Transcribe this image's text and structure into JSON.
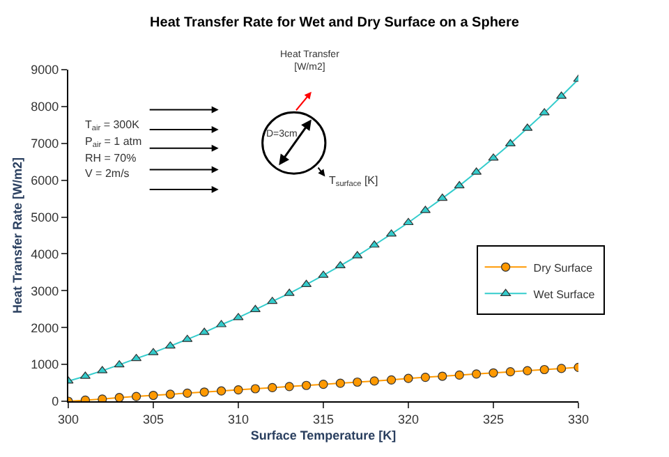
{
  "chart_data": {
    "type": "line",
    "title": "Heat Transfer Rate for Wet and Dry Surface on a Sphere",
    "xlabel": "Surface Temperature [K]",
    "ylabel": "Heat Transfer Rate [W/m2]",
    "x": [
      300,
      301,
      302,
      303,
      304,
      305,
      306,
      307,
      308,
      309,
      310,
      311,
      312,
      313,
      314,
      315,
      316,
      317,
      318,
      319,
      320,
      321,
      322,
      323,
      324,
      325,
      326,
      327,
      328,
      329,
      330
    ],
    "series": [
      {
        "name": "Dry Surface",
        "color": "#ff9900",
        "marker": "circle",
        "values": [
          0,
          30,
          60,
          100,
          130,
          160,
          190,
          220,
          250,
          280,
          310,
          340,
          370,
          400,
          430,
          460,
          490,
          520,
          550,
          580,
          620,
          650,
          680,
          710,
          740,
          770,
          800,
          830,
          860,
          890,
          920
        ]
      },
      {
        "name": "Wet Surface",
        "color": "#33cccc",
        "marker": "triangle",
        "values": [
          550,
          680,
          830,
          990,
          1160,
          1320,
          1500,
          1680,
          1870,
          2080,
          2270,
          2490,
          2710,
          2930,
          3170,
          3420,
          3680,
          3950,
          4240,
          4540,
          4850,
          5180,
          5510,
          5850,
          6220,
          6600,
          6990,
          7410,
          7830,
          8280,
          8740
        ]
      }
    ],
    "xlim": [
      300,
      330
    ],
    "xticks": [
      300,
      305,
      310,
      315,
      320,
      325,
      330
    ],
    "ylim": [
      0,
      9000
    ],
    "yticks": [
      0,
      1000,
      2000,
      3000,
      4000,
      5000,
      6000,
      7000,
      8000,
      9000
    ],
    "legend": "right",
    "annotations": [
      "T$_{air}$ = 300K",
      "P$_{air}$ = 1 atm",
      "RH = 70%",
      "V = 2m/s",
      "Heat Transfer\n[W/m2]",
      "D=3cm",
      "T$_{surface}$ [K]"
    ]
  }
}
